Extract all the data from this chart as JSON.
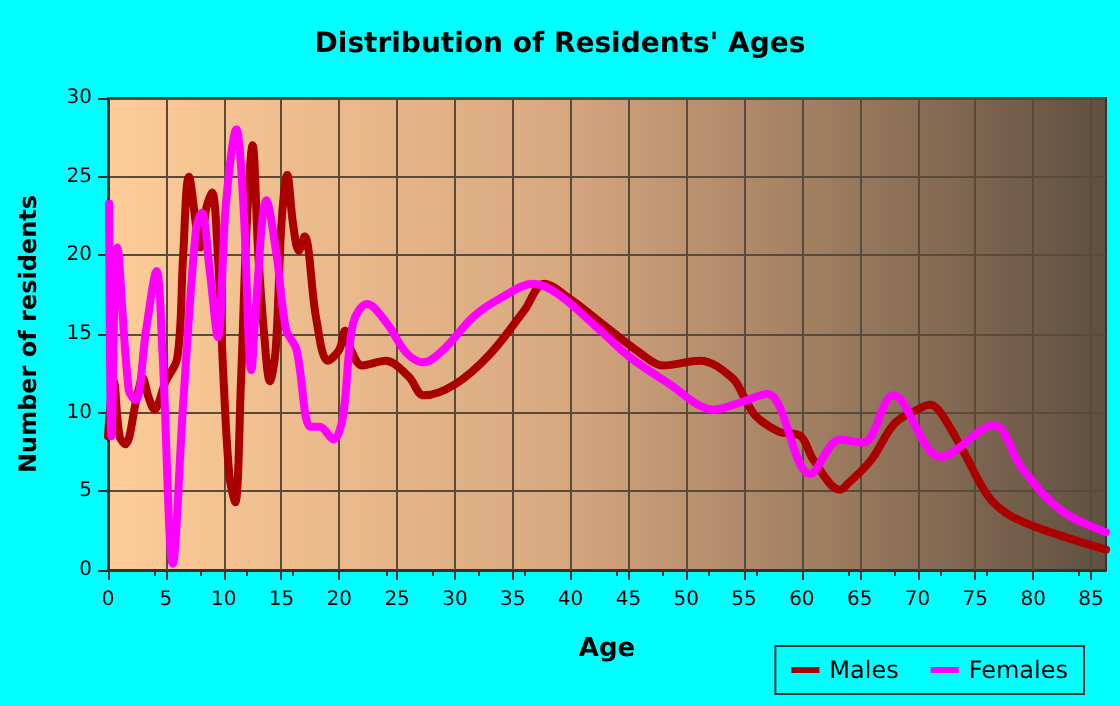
{
  "chart_data": {
    "type": "line",
    "title": "Distribution of Residents' Ages",
    "xlabel": "Age",
    "ylabel": "Number of residents",
    "xlim": [
      0,
      86.3
    ],
    "xticks": [
      0,
      5,
      10,
      15,
      20,
      25,
      30,
      35,
      40,
      45,
      50,
      55,
      60,
      65,
      70,
      75,
      80,
      85
    ],
    "ylim": [
      0,
      30
    ],
    "yticks": [
      0,
      5,
      10,
      15,
      20,
      25,
      30
    ],
    "grid": true,
    "legend": "bottom right",
    "marker": "none",
    "line_style": "solid",
    "series": [
      {
        "name": "Males",
        "color": "#aa0000",
        "x": [
          0,
          0.5,
          1,
          1.5,
          2.5,
          3,
          3.5,
          4,
          5,
          6,
          6.5,
          7,
          8,
          8.5,
          9,
          9.5,
          10,
          10.5,
          11,
          11.5,
          12,
          12.5,
          13,
          13.5,
          14,
          14.5,
          15,
          15.5,
          16,
          16.5,
          17,
          18,
          19,
          20,
          20.5,
          21,
          22,
          24,
          26,
          27.3,
          30,
          33,
          36,
          37.7,
          40,
          43,
          46,
          48,
          51.2,
          54,
          55,
          56,
          58,
          59.9,
          61,
          63.3,
          64,
          66,
          68,
          70,
          71.1,
          72,
          74,
          76,
          77.7,
          80,
          84,
          86.3
        ],
        "values": [
          8.5,
          12,
          8.5,
          8,
          11,
          12.2,
          11,
          10.2,
          12,
          13.5,
          20,
          25,
          20.5,
          23,
          24,
          20,
          12,
          6,
          4.3,
          12,
          22,
          27,
          20,
          15,
          12,
          14,
          22,
          25.1,
          22,
          20.3,
          21.2,
          16,
          13.3,
          14,
          15.2,
          14,
          13,
          13.3,
          12.3,
          11.1,
          11.8,
          13.7,
          16.5,
          18.2,
          17.2,
          15.5,
          13.8,
          13,
          13.3,
          12.2,
          11,
          9.8,
          8.8,
          8.5,
          7,
          5.1,
          5.5,
          7,
          9.3,
          10.2,
          10.5,
          10,
          7.5,
          4.8,
          3.6,
          2.8,
          1.8,
          1.3
        ]
      },
      {
        "name": "Females",
        "color": "#ff00ff",
        "x": [
          0.1,
          0.3,
          0.8,
          1.8,
          2.4,
          3.3,
          4.2,
          4.7,
          5.6,
          6.5,
          7.6,
          8.1,
          8.8,
          9.5,
          10.2,
          11.1,
          11.7,
          12.4,
          12.8,
          13.7,
          14.6,
          15.4,
          16.3,
          17.5,
          18.3,
          19.5,
          20.3,
          21.2,
          22.4,
          24.1,
          25.8,
          27.3,
          29,
          31.6,
          34,
          36.8,
          39,
          42.6,
          45,
          48.4,
          52.4,
          54.5,
          57,
          60.7,
          63.3,
          65.3,
          67.9,
          72,
          76.6,
          79,
          82.4,
          86.3
        ],
        "values": [
          23.3,
          8.5,
          20.5,
          11.4,
          10.8,
          15.3,
          19,
          14,
          0.4,
          10.6,
          21.6,
          22.7,
          19,
          14.8,
          23.3,
          28,
          23.3,
          12.7,
          16.9,
          23.5,
          19.9,
          15.3,
          14,
          9.1,
          9.1,
          8.3,
          9.7,
          15.7,
          16.9,
          15.7,
          13.8,
          13.2,
          14,
          16.1,
          17.3,
          18.2,
          17.5,
          15.2,
          13.6,
          11.9,
          10.2,
          10.6,
          11.2,
          6.1,
          8.3,
          8.1,
          11.1,
          7.2,
          9.2,
          6.5,
          3.8,
          2.4
        ]
      }
    ]
  }
}
